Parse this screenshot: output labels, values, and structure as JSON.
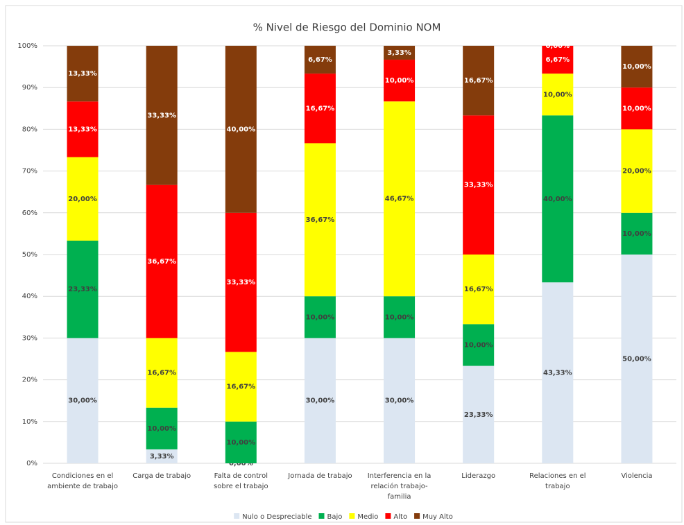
{
  "chart_data": {
    "type": "stacked-bar",
    "title": "% Nivel de Riesgo del Dominio NOM",
    "categories": [
      "Condiciones en el ambiente de trabajo",
      "Carga de trabajo",
      "Falta de control sobre el trabajo",
      "Jornada de trabajo",
      "Interferencia en la relación trabajo-familia",
      "Liderazgo",
      "Relaciones en el trabajo",
      "Violencia"
    ],
    "ylim": [
      0,
      100
    ],
    "yticks": [
      {
        "value": 0,
        "label": "0%"
      },
      {
        "value": 10,
        "label": "10%"
      },
      {
        "value": 20,
        "label": "20%"
      },
      {
        "value": 30,
        "label": "30%"
      },
      {
        "value": 40,
        "label": "40%"
      },
      {
        "value": 50,
        "label": "50%"
      },
      {
        "value": 60,
        "label": "60%"
      },
      {
        "value": 70,
        "label": "70%"
      },
      {
        "value": 80,
        "label": "80%"
      },
      {
        "value": 90,
        "label": "90%"
      },
      {
        "value": 100,
        "label": "100%"
      }
    ],
    "grid": true,
    "legend": "bottom",
    "series": [
      {
        "name": "Nulo o Despreciable",
        "color": "#dce6f2",
        "label_color": "#404040",
        "values": [
          30,
          3.33,
          0,
          30,
          30,
          23.33,
          43.33,
          50
        ],
        "value_labels": [
          "30,00%",
          "3,33%",
          "0,00%",
          "30,00%",
          "30,00%",
          "23,33%",
          "43,33%",
          "50,00%"
        ]
      },
      {
        "name": "Bajo",
        "color": "#00b050",
        "label_color": "#404040",
        "values": [
          23.33,
          10,
          10,
          10,
          10,
          10,
          40,
          10
        ],
        "value_labels": [
          "23,33%",
          "10,00%",
          "10,00%",
          "10,00%",
          "10,00%",
          "10,00%",
          "40,00%",
          "10,00%"
        ]
      },
      {
        "name": "Medio",
        "color": "#ffff00",
        "label_color": "#404040",
        "values": [
          20,
          16.67,
          16.67,
          36.67,
          46.67,
          16.67,
          10,
          20
        ],
        "value_labels": [
          "20,00%",
          "16,67%",
          "16,67%",
          "36,67%",
          "46,67%",
          "16,67%",
          "10,00%",
          "20,00%"
        ]
      },
      {
        "name": "Alto",
        "color": "#ff0000",
        "label_color": "#ffffff",
        "values": [
          13.33,
          36.67,
          33.33,
          16.67,
          10,
          33.33,
          6.67,
          10
        ],
        "value_labels": [
          "13,33%",
          "36,67%",
          "33,33%",
          "16,67%",
          "10,00%",
          "33,33%",
          "6,67%",
          "10,00%"
        ]
      },
      {
        "name": "Muy Alto",
        "color": "#843c0c",
        "label_color": "#ffffff",
        "values": [
          13.33,
          33.33,
          40,
          6.67,
          3.33,
          16.67,
          0,
          10
        ],
        "value_labels": [
          "13,33%",
          "33,33%",
          "40,00%",
          "6,67%",
          "3,33%",
          "16,67%",
          "0,00%",
          "10,00%"
        ]
      }
    ]
  }
}
